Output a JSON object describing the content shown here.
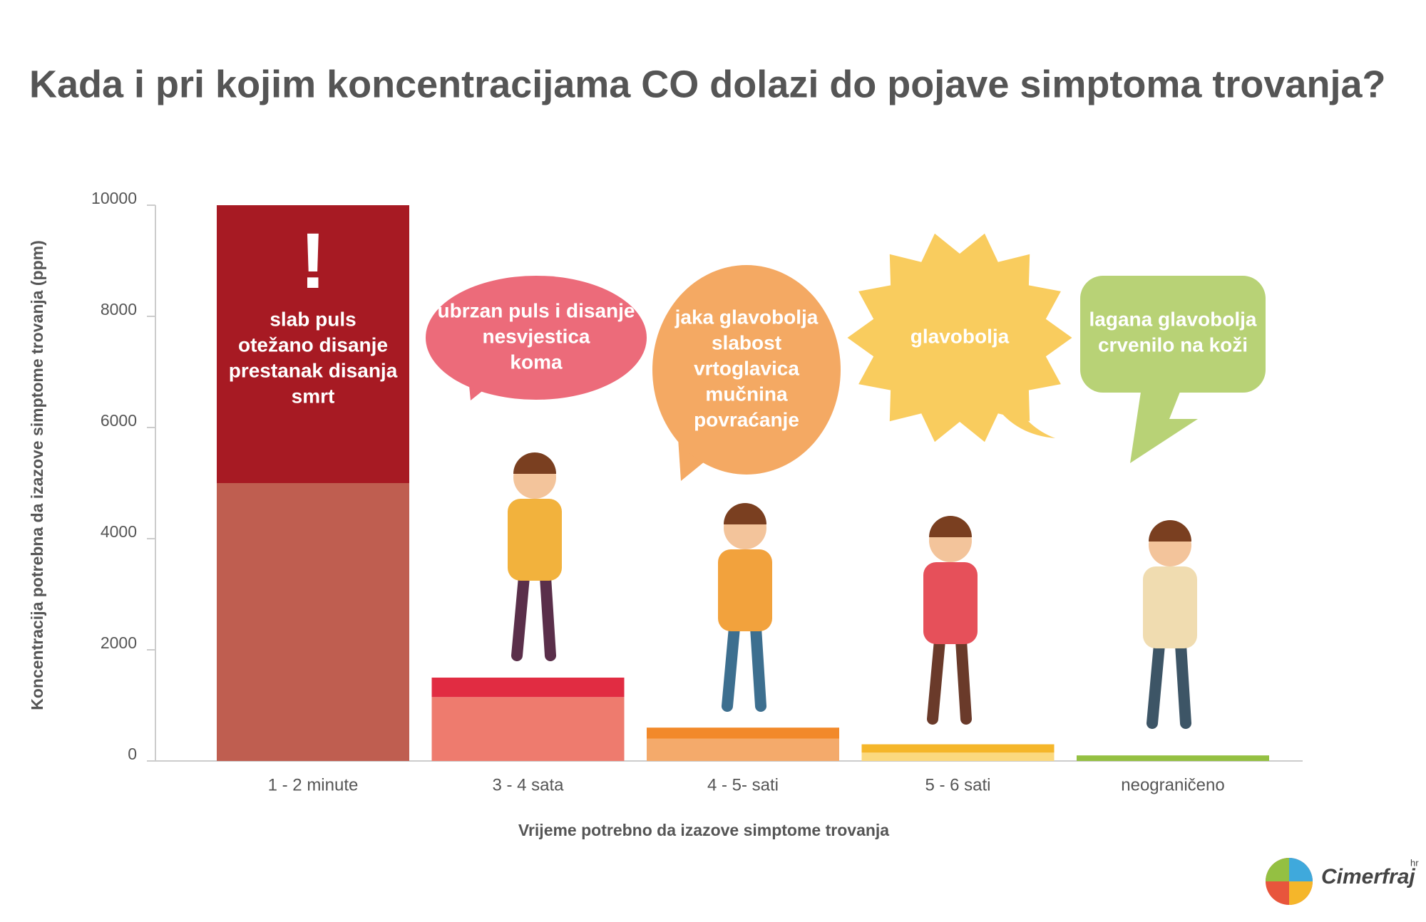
{
  "chart_data": {
    "type": "stacked-bar",
    "title": "Kada i pri kojim koncentracijama CO dolazi do pojave simptoma trovanja?",
    "y_label": "Koncentracija potrebna da izazove simptome trovanja (ppm)",
    "x_label": "Vrijeme potrebno da izazove simptome trovanja",
    "categories": [
      "1 - 2 minute",
      "3 - 4 sata",
      "4 - 5- sati",
      "5 - 6 sati",
      "neograničeno"
    ],
    "series": [
      {
        "colors": [
          "#bf5e50",
          "#ee7b6e",
          "#f4aa6b",
          "#fbd97f",
          "#94c042"
        ],
        "values": [
          5000,
          1150,
          400,
          150,
          100
        ]
      },
      {
        "colors": [
          "#a71a23",
          "#e12c42",
          "#f2892a",
          "#f5b62a",
          null
        ],
        "values": [
          5000,
          350,
          200,
          150,
          null
        ]
      }
    ],
    "ylim": [
      0,
      10000
    ],
    "yticks": [
      0,
      2000,
      4000,
      6000,
      8000,
      10000
    ],
    "exclamation": "!",
    "annotations": [
      [
        "slab puls",
        "otežano disanje",
        "prestanak disanja",
        "smrt"
      ],
      [
        "ubrzan puls i disanje",
        "nesvjestica",
        "koma"
      ],
      [
        "jaka glavobolja",
        "slabost",
        "vrtoglavica",
        "mučnina",
        "povraćanje"
      ],
      [
        "glavobolja"
      ],
      [
        "lagana glavobolja",
        "crvenilo na koži"
      ]
    ],
    "annotation_colors": [
      null,
      "#ec6b7a",
      "#f4a963",
      "#f9cc5e",
      "#b8d276"
    ],
    "logo": "Cimerfraj",
    "logo_suffix": "hr"
  }
}
